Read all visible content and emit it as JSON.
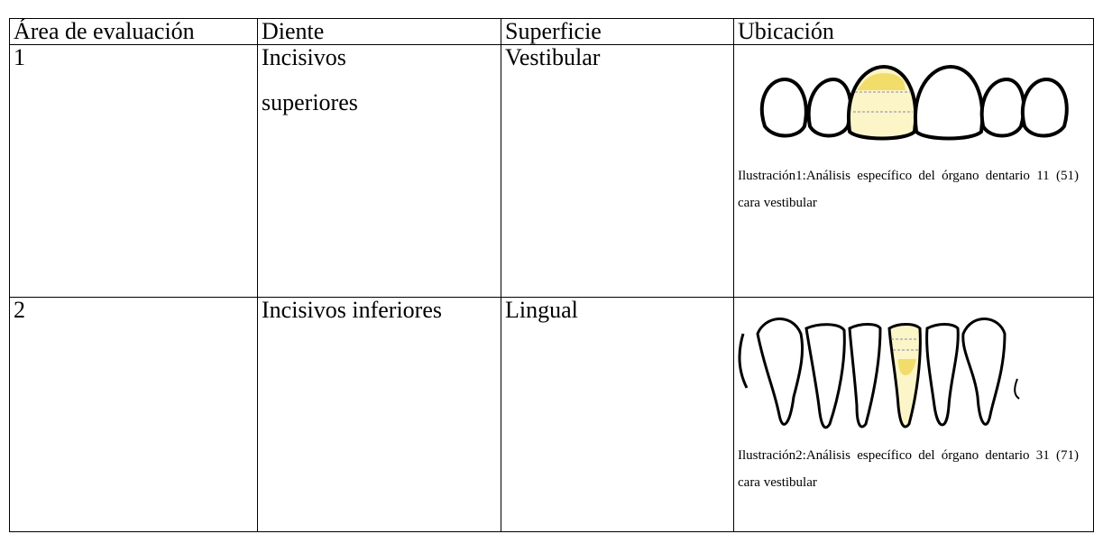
{
  "table": {
    "header": [
      "Área de evaluación",
      "Diente",
      "Superficie",
      "Ubicación"
    ],
    "rows": [
      [
        "1",
        "Incisivos superiores",
        "Vestibular",
        "Ilustración1:Análisis específico del órgano dentario 11 (51) cara vestibular"
      ],
      [
        "2",
        "Incisivos inferiores",
        "Lingual",
        "Ilustración2:Análisis específico del órgano dentario 31 (71) cara vestibular"
      ]
    ]
  }
}
